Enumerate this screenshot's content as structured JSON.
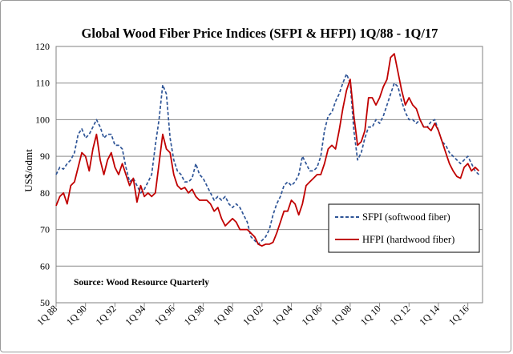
{
  "chart_data": {
    "type": "line",
    "title": "Global Wood Fiber Price Indices (SFPI & HFPI) 1Q/88 - 1Q/17",
    "ylabel": "US$/odmt",
    "xlabel": "",
    "ylim": [
      50,
      120
    ],
    "yticks": [
      50,
      60,
      70,
      80,
      90,
      100,
      110,
      120
    ],
    "xlim": [
      1988.0,
      2017.0
    ],
    "x_tick_labels": [
      "1Q 88",
      "1Q 90",
      "1Q 92",
      "1Q 94",
      "1Q 96",
      "1Q 98",
      "1Q 00",
      "1Q 02",
      "1Q 04",
      "1Q 06",
      "1Q 08",
      "1Q 10",
      "1Q 12",
      "1Q 14",
      "1Q 16"
    ],
    "x_tick_years": [
      1988,
      1990,
      1992,
      1994,
      1996,
      1998,
      2000,
      2002,
      2004,
      2006,
      2008,
      2010,
      2012,
      2014,
      2016
    ],
    "grid": true,
    "source_note": "Source: Wood Resource Quarterly",
    "series": [
      {
        "name": "SFPI (softwood fiber)",
        "color": "#2f5597",
        "style": "dashed",
        "points": [
          [
            1988.0,
            85
          ],
          [
            1988.25,
            87
          ],
          [
            1988.5,
            86.5
          ],
          [
            1988.75,
            88
          ],
          [
            1989.0,
            89
          ],
          [
            1989.25,
            91
          ],
          [
            1989.5,
            96
          ],
          [
            1989.75,
            97.5
          ],
          [
            1990.0,
            95
          ],
          [
            1990.25,
            96
          ],
          [
            1990.5,
            98
          ],
          [
            1990.75,
            100
          ],
          [
            1991.0,
            98
          ],
          [
            1991.25,
            95
          ],
          [
            1991.5,
            96
          ],
          [
            1991.75,
            96
          ],
          [
            1992.0,
            93
          ],
          [
            1992.25,
            93
          ],
          [
            1992.5,
            92
          ],
          [
            1992.75,
            87
          ],
          [
            1993.0,
            83
          ],
          [
            1993.25,
            84
          ],
          [
            1993.5,
            82
          ],
          [
            1993.75,
            80
          ],
          [
            1994.0,
            81
          ],
          [
            1994.25,
            83
          ],
          [
            1994.5,
            85
          ],
          [
            1994.75,
            93
          ],
          [
            1995.0,
            100
          ],
          [
            1995.25,
            109.5
          ],
          [
            1995.5,
            107
          ],
          [
            1995.75,
            95
          ],
          [
            1996.0,
            89
          ],
          [
            1996.25,
            86
          ],
          [
            1996.5,
            85
          ],
          [
            1996.75,
            83
          ],
          [
            1997.0,
            83
          ],
          [
            1997.25,
            84
          ],
          [
            1997.5,
            88
          ],
          [
            1997.75,
            85
          ],
          [
            1998.0,
            84
          ],
          [
            1998.25,
            82
          ],
          [
            1998.5,
            80
          ],
          [
            1998.75,
            78
          ],
          [
            1999.0,
            79
          ],
          [
            1999.25,
            78
          ],
          [
            1999.5,
            79
          ],
          [
            1999.75,
            77
          ],
          [
            2000.0,
            76
          ],
          [
            2000.25,
            77
          ],
          [
            2000.5,
            76
          ],
          [
            2000.75,
            74
          ],
          [
            2001.0,
            72
          ],
          [
            2001.25,
            68
          ],
          [
            2001.5,
            67
          ],
          [
            2001.75,
            66
          ],
          [
            2002.0,
            67
          ],
          [
            2002.25,
            68
          ],
          [
            2002.5,
            70
          ],
          [
            2002.75,
            74
          ],
          [
            2003.0,
            77
          ],
          [
            2003.25,
            79
          ],
          [
            2003.5,
            82
          ],
          [
            2003.75,
            83
          ],
          [
            2004.0,
            82
          ],
          [
            2004.25,
            83
          ],
          [
            2004.5,
            85
          ],
          [
            2004.75,
            90
          ],
          [
            2005.0,
            88
          ],
          [
            2005.25,
            86
          ],
          [
            2005.5,
            86
          ],
          [
            2005.75,
            87
          ],
          [
            2006.0,
            90
          ],
          [
            2006.25,
            97
          ],
          [
            2006.5,
            101
          ],
          [
            2006.75,
            102
          ],
          [
            2007.0,
            105
          ],
          [
            2007.25,
            107
          ],
          [
            2007.5,
            110
          ],
          [
            2007.75,
            112.5
          ],
          [
            2008.0,
            110
          ],
          [
            2008.25,
            97
          ],
          [
            2008.5,
            89
          ],
          [
            2008.75,
            91
          ],
          [
            2009.0,
            95
          ],
          [
            2009.25,
            98
          ],
          [
            2009.5,
            98
          ],
          [
            2009.75,
            100
          ],
          [
            2010.0,
            99
          ],
          [
            2010.25,
            101
          ],
          [
            2010.5,
            104
          ],
          [
            2010.75,
            107
          ],
          [
            2011.0,
            110
          ],
          [
            2011.25,
            109
          ],
          [
            2011.5,
            105
          ],
          [
            2011.75,
            102
          ],
          [
            2012.0,
            100
          ],
          [
            2012.25,
            100
          ],
          [
            2012.5,
            99
          ],
          [
            2012.75,
            100
          ],
          [
            2013.0,
            98
          ],
          [
            2013.25,
            98
          ],
          [
            2013.5,
            99.5
          ],
          [
            2013.75,
            100
          ],
          [
            2014.0,
            97
          ],
          [
            2014.25,
            94
          ],
          [
            2014.5,
            93
          ],
          [
            2014.75,
            91
          ],
          [
            2015.0,
            90
          ],
          [
            2015.25,
            89
          ],
          [
            2015.5,
            88
          ],
          [
            2015.75,
            89
          ],
          [
            2016.0,
            90
          ],
          [
            2016.25,
            88
          ],
          [
            2016.5,
            86
          ],
          [
            2016.75,
            85
          ]
        ]
      },
      {
        "name": "HFPI (hardwood fiber)",
        "color": "#c00000",
        "style": "solid",
        "points": [
          [
            1988.0,
            76.5
          ],
          [
            1988.25,
            79
          ],
          [
            1988.5,
            80
          ],
          [
            1988.75,
            77
          ],
          [
            1989.0,
            82
          ],
          [
            1989.25,
            83
          ],
          [
            1989.5,
            87
          ],
          [
            1989.75,
            91
          ],
          [
            1990.0,
            90
          ],
          [
            1990.25,
            86
          ],
          [
            1990.5,
            92
          ],
          [
            1990.75,
            96
          ],
          [
            1991.0,
            89
          ],
          [
            1991.25,
            85
          ],
          [
            1991.5,
            89
          ],
          [
            1991.75,
            91
          ],
          [
            1992.0,
            87
          ],
          [
            1992.25,
            85
          ],
          [
            1992.5,
            88
          ],
          [
            1992.75,
            85
          ],
          [
            1993.0,
            82
          ],
          [
            1993.25,
            84
          ],
          [
            1993.5,
            77.5
          ],
          [
            1993.75,
            82
          ],
          [
            1994.0,
            79
          ],
          [
            1994.25,
            80
          ],
          [
            1994.5,
            79
          ],
          [
            1994.75,
            80
          ],
          [
            1995.0,
            88
          ],
          [
            1995.25,
            96
          ],
          [
            1995.5,
            92
          ],
          [
            1995.75,
            91
          ],
          [
            1996.0,
            85
          ],
          [
            1996.25,
            82
          ],
          [
            1996.5,
            81
          ],
          [
            1996.75,
            81.5
          ],
          [
            1997.0,
            80
          ],
          [
            1997.25,
            81
          ],
          [
            1997.5,
            79
          ],
          [
            1997.75,
            78
          ],
          [
            1998.0,
            78
          ],
          [
            1998.25,
            78
          ],
          [
            1998.5,
            77
          ],
          [
            1998.75,
            75
          ],
          [
            1999.0,
            76
          ],
          [
            1999.25,
            73
          ],
          [
            1999.5,
            71
          ],
          [
            1999.75,
            72
          ],
          [
            2000.0,
            73
          ],
          [
            2000.25,
            72
          ],
          [
            2000.5,
            70
          ],
          [
            2000.75,
            70
          ],
          [
            2001.0,
            70
          ],
          [
            2001.25,
            69
          ],
          [
            2001.5,
            68
          ],
          [
            2001.75,
            66
          ],
          [
            2002.0,
            65.5
          ],
          [
            2002.25,
            66
          ],
          [
            2002.5,
            66
          ],
          [
            2002.75,
            66.5
          ],
          [
            2003.0,
            69
          ],
          [
            2003.25,
            72
          ],
          [
            2003.5,
            75
          ],
          [
            2003.75,
            75
          ],
          [
            2004.0,
            78
          ],
          [
            2004.25,
            77
          ],
          [
            2004.5,
            74
          ],
          [
            2004.75,
            77
          ],
          [
            2005.0,
            82
          ],
          [
            2005.25,
            83
          ],
          [
            2005.5,
            84
          ],
          [
            2005.75,
            85
          ],
          [
            2006.0,
            85
          ],
          [
            2006.25,
            88
          ],
          [
            2006.5,
            92
          ],
          [
            2006.75,
            93
          ],
          [
            2007.0,
            92
          ],
          [
            2007.25,
            97
          ],
          [
            2007.5,
            103
          ],
          [
            2007.75,
            108
          ],
          [
            2008.0,
            111
          ],
          [
            2008.25,
            101
          ],
          [
            2008.5,
            93
          ],
          [
            2008.75,
            94
          ],
          [
            2009.0,
            97
          ],
          [
            2009.25,
            106
          ],
          [
            2009.5,
            106
          ],
          [
            2009.75,
            104
          ],
          [
            2010.0,
            106
          ],
          [
            2010.25,
            109
          ],
          [
            2010.5,
            111
          ],
          [
            2010.75,
            117
          ],
          [
            2011.0,
            118
          ],
          [
            2011.25,
            113
          ],
          [
            2011.5,
            108
          ],
          [
            2011.75,
            104
          ],
          [
            2012.0,
            106
          ],
          [
            2012.25,
            104
          ],
          [
            2012.5,
            103
          ],
          [
            2012.75,
            100
          ],
          [
            2013.0,
            98
          ],
          [
            2013.25,
            98
          ],
          [
            2013.5,
            97
          ],
          [
            2013.75,
            99
          ],
          [
            2014.0,
            97
          ],
          [
            2014.25,
            94
          ],
          [
            2014.5,
            91
          ],
          [
            2014.75,
            88
          ],
          [
            2015.0,
            86
          ],
          [
            2015.25,
            84.5
          ],
          [
            2015.5,
            84
          ],
          [
            2015.75,
            87
          ],
          [
            2016.0,
            88
          ],
          [
            2016.25,
            86
          ],
          [
            2016.5,
            87
          ],
          [
            2016.75,
            86
          ]
        ]
      }
    ]
  }
}
